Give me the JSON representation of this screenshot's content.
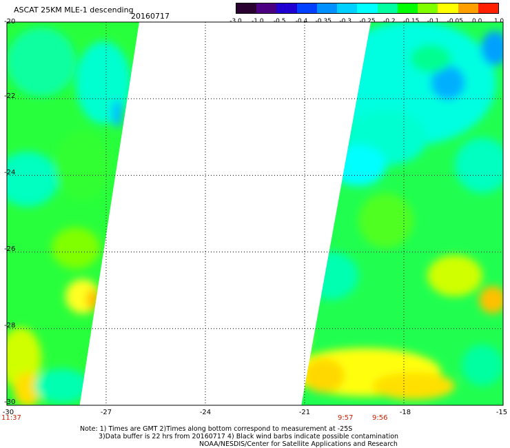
{
  "header": {
    "title": "ASCAT 25KM MLE-1 descending",
    "date": "20160717"
  },
  "colorbar": {
    "labels": [
      "-3.0",
      "-1.0",
      "-0.5",
      "-0.4",
      "-0.35",
      "-0.3",
      "-0.25",
      "-0.2",
      "-0.15",
      "-0.1",
      "-0.05",
      "0.0",
      "1.0"
    ],
    "colors": [
      "#2a0030",
      "#4a0080",
      "#2000d0",
      "#0040ff",
      "#0090ff",
      "#00d0ff",
      "#00ffff",
      "#00ffa0",
      "#00ff00",
      "#80ff00",
      "#ffff00",
      "#ffa000",
      "#ff2000"
    ]
  },
  "axes": {
    "lat_labels": [
      "-20",
      "-22",
      "-24",
      "-26",
      "-28",
      "-30"
    ],
    "lon_labels": [
      "-30",
      "-27",
      "-24",
      "-21",
      "-18",
      "-15"
    ]
  },
  "times": {
    "left": "11:37",
    "mid1": "9:57",
    "mid2": "9:56"
  },
  "notes": {
    "line1": "Note: 1) Times are GMT 2)Times along bottom correspond to measurement at -25S",
    "line2": "3)Data buffer is 22 hrs from 20160717 4) Black wind barbs indicate possible contamination",
    "line3": "NOAA/NESDIS/Center for Satellite Applications and Research"
  },
  "map": {
    "lat_range": [
      -30,
      -20
    ],
    "lon_range": [
      -30,
      -15
    ],
    "swaths": [
      {
        "name": "western-swath",
        "edge_top_lon": -26.0,
        "edge_bottom_lon": -27.8
      },
      {
        "name": "eastern-swath",
        "edge_top_lon": -19.0,
        "edge_bottom_lon": -21.1
      }
    ]
  }
}
